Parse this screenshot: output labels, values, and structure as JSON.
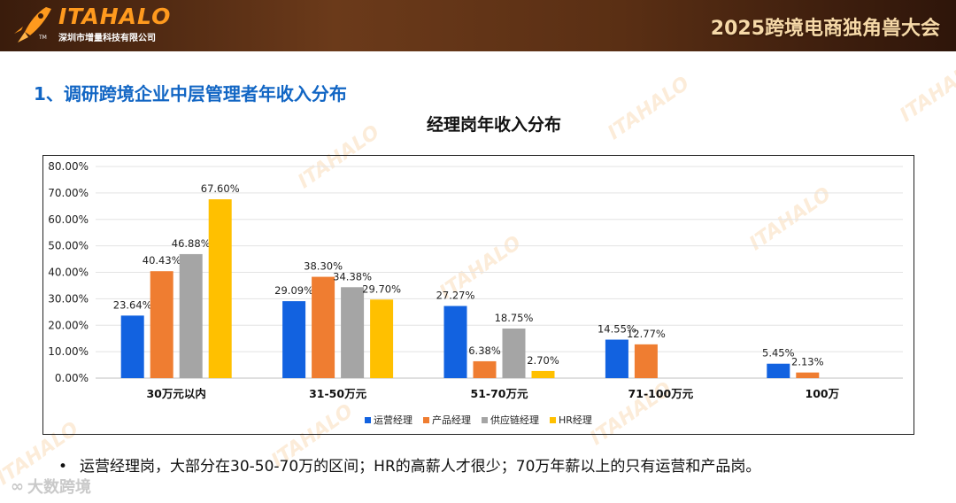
{
  "header": {
    "logo_text": "ITAHALO",
    "logo_subtitle": "深圳市增量科技有限公司",
    "logo_tm": "TM",
    "event_title": "2025跨境电商独角兽大会",
    "logo_icon": "rocket-icon"
  },
  "section_title": "1、调研跨境企业中层管理者年收入分布",
  "chart_data": {
    "type": "bar",
    "title": "经理岗年收入分布",
    "categories": [
      "30万元以内",
      "31-50万元",
      "51-70万元",
      "71-100万元",
      "100万"
    ],
    "series": [
      {
        "name": "运营经理",
        "color": "#1262e0",
        "values": [
          23.64,
          29.09,
          27.27,
          14.55,
          5.45
        ]
      },
      {
        "name": "产品经理",
        "color": "#ef7d31",
        "values": [
          40.43,
          38.3,
          6.38,
          12.77,
          2.13
        ]
      },
      {
        "name": "供应链经理",
        "color": "#a5a5a5",
        "values": [
          46.88,
          34.38,
          18.75,
          null,
          null
        ]
      },
      {
        "name": "HR经理",
        "color": "#ffc000",
        "values": [
          67.6,
          29.7,
          2.7,
          null,
          null
        ]
      }
    ],
    "ylim": [
      0,
      80
    ],
    "yticks": [
      "0.00%",
      "10.00%",
      "20.00%",
      "30.00%",
      "40.00%",
      "50.00%",
      "60.00%",
      "70.00%",
      "80.00%"
    ],
    "value_suffix": "%",
    "value_decimals": 2,
    "grid": true,
    "legend_placement": "bottom"
  },
  "legend": [
    {
      "name": "运营经理",
      "color": "#1262e0"
    },
    {
      "name": "产品经理",
      "color": "#ef7d31"
    },
    {
      "name": "供应链经理",
      "color": "#a5a5a5"
    },
    {
      "name": "HR经理",
      "color": "#ffc000"
    }
  ],
  "note": {
    "bullet": "•",
    "text": "运营经理岗，大部分在30-50-70万的区间；HR的高薪人才很少；70万年薪以上的只有运营和产品岗。"
  },
  "footer": {
    "brand": "大数跨境",
    "icon": "brand-logo-icon"
  },
  "watermark_text": "ITAHALO"
}
